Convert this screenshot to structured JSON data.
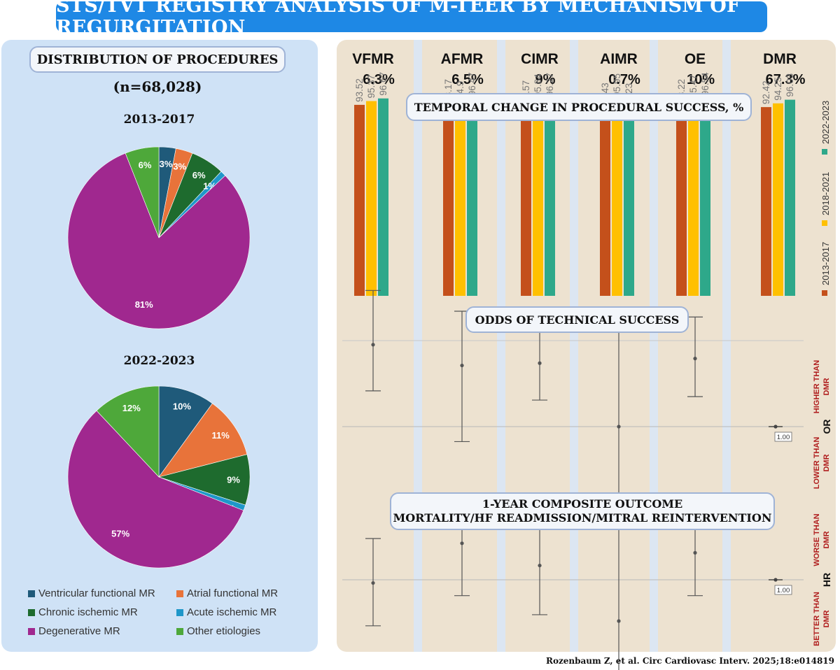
{
  "title": "STS/TVT REGISTRY ANALYSIS OF M-TEER BY MECHANISM OF REGURGITATION",
  "left": {
    "heading": "DISTRIBUTION OF PROCEDURES",
    "n_label": "(n=68,028)",
    "pie1_title": "2013-2017",
    "pie2_title": "2022-2023"
  },
  "right": {
    "mechanisms": [
      {
        "name": "VFMR",
        "share": "6.3%"
      },
      {
        "name": "AFMR",
        "share": "6.5%"
      },
      {
        "name": "CIMR",
        "share": "9%"
      },
      {
        "name": "AIMR",
        "share": "0.7%"
      },
      {
        "name": "OE",
        "share": "10%"
      },
      {
        "name": "DMR",
        "share": "67.3%"
      }
    ],
    "section1_title": "TEMPORAL CHANGE IN PROCEDURAL SUCCESS, %",
    "section2_title": "ODDS OF TECHNICAL SUCCESS",
    "section3_title_line1": "1-YEAR COMPOSITE OUTCOME",
    "section3_title_line2": "MORTALITY/HF READMISSION/MITRAL REINTERVENTION",
    "or_side": {
      "higher": "HIGHER THAN DMR",
      "lower": "LOWER THAN DMR",
      "label": "OR"
    },
    "hr_side": {
      "worse": "WORSE THAN DMR",
      "better": "BETTER THAN DMR",
      "label": "HR"
    },
    "ref_label": "1.00"
  },
  "citation": "Rozenbaum Z, et al. Circ Cardiovasc Interv. 2025;18:e014819",
  "colors": {
    "vfmr": "#1f5a7a",
    "afmr": "#e8733a",
    "cimr": "#1e6b2e",
    "aimr": "#1f97c9",
    "dmr": "#a0288f",
    "other": "#4ea83a",
    "bar_2013": "#c4501b",
    "bar_2018": "#ffc000",
    "bar_2022": "#2ea88a"
  },
  "chart_data": [
    {
      "type": "pie",
      "title": "2013-2017",
      "labels": [
        "Ventricular functional MR",
        "Atrial functional MR",
        "Chronic ischemic MR",
        "Acute ischemic MR",
        "Degenerative MR",
        "Other etiologies"
      ],
      "values": [
        3,
        3,
        6,
        1,
        81,
        6
      ],
      "value_labels": [
        "3%",
        "3%",
        "6%",
        "1%",
        "81%",
        "6%"
      ]
    },
    {
      "type": "pie",
      "title": "2022-2023",
      "labels": [
        "Ventricular functional MR",
        "Atrial functional MR",
        "Chronic ischemic MR",
        "Acute ischemic MR",
        "Degenerative MR",
        "Other etiologies"
      ],
      "values": [
        10,
        11,
        9,
        1,
        57,
        12
      ],
      "value_labels": [
        "10%",
        "11%",
        "9%",
        "1%",
        "57%",
        "12%"
      ]
    },
    {
      "type": "bar",
      "title": "TEMPORAL CHANGE IN PROCEDURAL SUCCESS, %",
      "categories": [
        "VFMR",
        "AFMR",
        "CIMR",
        "AIMR",
        "OE",
        "DMR"
      ],
      "series": [
        {
          "name": "2013-2017",
          "values": [
            93.52,
            93.17,
            92.57,
            91.43,
            93.22,
            92.42
          ],
          "labels": [
            "93.52",
            "93.17",
            "92.57",
            "91.43",
            "93.22",
            "92.42"
          ]
        },
        {
          "name": "2018-2021",
          "values": [
            95.37,
            94.9,
            95.84,
            95.95,
            95.47,
            94.25
          ],
          "labels": [
            "95.37",
            "94.9",
            "95.84",
            "95.95",
            "95.47",
            "94.25"
          ]
        },
        {
          "name": "2022-2023",
          "values": [
            96.67,
            96.47,
            96.27,
            91.23,
            96.54,
            96.03
          ],
          "labels": [
            "96.67",
            "96.47",
            "96.27",
            "91.23",
            "96.54",
            "96.03"
          ]
        }
      ],
      "ylim": [
        0,
        100
      ]
    },
    {
      "type": "scatter",
      "title": "ODDS OF TECHNICAL SUCCESS",
      "ylabel": "OR",
      "reference": 1.0,
      "categories": [
        "VFMR",
        "AFMR",
        "CIMR",
        "AIMR",
        "OE",
        "DMR"
      ],
      "estimate": [
        1.71,
        1.53,
        1.55,
        1.0,
        1.59,
        1.0
      ],
      "lower": [
        1.31,
        0.87,
        1.23,
        0.38,
        1.26,
        1.0
      ],
      "upper": [
        2.18,
        2.0,
        1.91,
        1.9,
        1.95,
        1.0
      ],
      "ylim": [
        0.2,
        2.3
      ]
    },
    {
      "type": "scatter",
      "title": "1-YEAR COMPOSITE OUTCOME",
      "ylabel": "HR",
      "reference": 1.0,
      "categories": [
        "VFMR",
        "AFMR",
        "CIMR",
        "AIMR",
        "OE",
        "DMR"
      ],
      "estimate": [
        0.98,
        1.23,
        1.09,
        0.74,
        1.17,
        1.0
      ],
      "lower": [
        0.71,
        0.9,
        0.78,
        0.36,
        0.9,
        1.0
      ],
      "upper": [
        1.26,
        1.53,
        1.36,
        1.45,
        1.41,
        1.0
      ],
      "ylim": [
        0.3,
        1.6
      ]
    }
  ]
}
